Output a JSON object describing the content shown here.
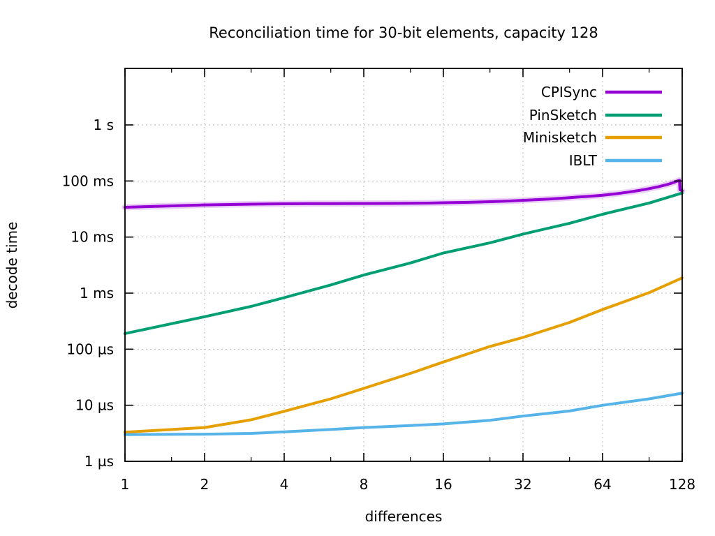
{
  "chart_data": {
    "type": "line",
    "title": "Reconciliation time for 30-bit elements, capacity 128",
    "xlabel": "differences",
    "ylabel": "decode time",
    "x_scale": "log2",
    "y_scale": "log10",
    "grid": true,
    "legend_position": "top-right-inside",
    "x_ticks": [
      1,
      2,
      4,
      8,
      16,
      32,
      64,
      128
    ],
    "x_range": [
      1,
      128
    ],
    "y_ticks": [
      {
        "label": "1 s",
        "time_us": 1000000
      },
      {
        "label": "100 ms",
        "time_us": 100000
      },
      {
        "label": "10 ms",
        "time_us": 10000
      },
      {
        "label": "1 ms",
        "time_us": 1000
      },
      {
        "label": "100 µs",
        "time_us": 100
      },
      {
        "label": "10 µs",
        "time_us": 10
      },
      {
        "label": "1 µs",
        "time_us": 1
      }
    ],
    "y_range_us": [
      1,
      10000000
    ],
    "series": [
      {
        "name": "CPISync",
        "color": "#9400d3",
        "points_x_us": [
          [
            1,
            34000
          ],
          [
            2,
            37500
          ],
          [
            3,
            38600
          ],
          [
            4,
            39200
          ],
          [
            5,
            39400
          ],
          [
            6,
            39500
          ],
          [
            8,
            39700
          ],
          [
            10,
            39800
          ],
          [
            12,
            40000
          ],
          [
            14,
            40400
          ],
          [
            16,
            40900
          ],
          [
            20,
            41600
          ],
          [
            24,
            42700
          ],
          [
            28,
            43900
          ],
          [
            32,
            45200
          ],
          [
            36,
            46400
          ],
          [
            40,
            47700
          ],
          [
            44,
            49000
          ],
          [
            48,
            50400
          ],
          [
            52,
            51700
          ],
          [
            56,
            53000
          ],
          [
            60,
            54300
          ],
          [
            64,
            55800
          ],
          [
            72,
            59200
          ],
          [
            80,
            63200
          ],
          [
            88,
            67800
          ],
          [
            96,
            73000
          ],
          [
            104,
            79000
          ],
          [
            112,
            86000
          ],
          [
            118,
            93000
          ],
          [
            123,
            100000
          ],
          [
            125,
            103000
          ],
          [
            125.5,
            70000
          ],
          [
            128,
            67000
          ]
        ]
      },
      {
        "name": "PinSketch",
        "color": "#009e73",
        "points_x_us": [
          [
            1,
            190
          ],
          [
            2,
            380
          ],
          [
            3,
            580
          ],
          [
            4,
            830
          ],
          [
            6,
            1400
          ],
          [
            8,
            2100
          ],
          [
            12,
            3450
          ],
          [
            16,
            5200
          ],
          [
            24,
            7900
          ],
          [
            32,
            11300
          ],
          [
            48,
            17600
          ],
          [
            64,
            25500
          ],
          [
            96,
            40500
          ],
          [
            128,
            61000
          ]
        ]
      },
      {
        "name": "Minisketch",
        "color": "#e69f00",
        "points_x_us": [
          [
            1,
            3.3
          ],
          [
            2,
            4.0
          ],
          [
            3,
            5.5
          ],
          [
            4,
            7.8
          ],
          [
            6,
            13
          ],
          [
            8,
            20
          ],
          [
            12,
            37
          ],
          [
            16,
            59
          ],
          [
            24,
            112
          ],
          [
            32,
            162
          ],
          [
            48,
            300
          ],
          [
            64,
            510
          ],
          [
            96,
            1020
          ],
          [
            128,
            1870
          ]
        ]
      },
      {
        "name": "IBLT",
        "color": "#56b4e9",
        "points_x_us": [
          [
            1,
            3.0
          ],
          [
            2,
            3.05
          ],
          [
            3,
            3.15
          ],
          [
            4,
            3.35
          ],
          [
            6,
            3.7
          ],
          [
            8,
            4.0
          ],
          [
            12,
            4.35
          ],
          [
            16,
            4.65
          ],
          [
            24,
            5.4
          ],
          [
            32,
            6.4
          ],
          [
            48,
            7.9
          ],
          [
            64,
            10.0
          ],
          [
            96,
            13.0
          ],
          [
            128,
            16.4
          ]
        ]
      }
    ]
  }
}
